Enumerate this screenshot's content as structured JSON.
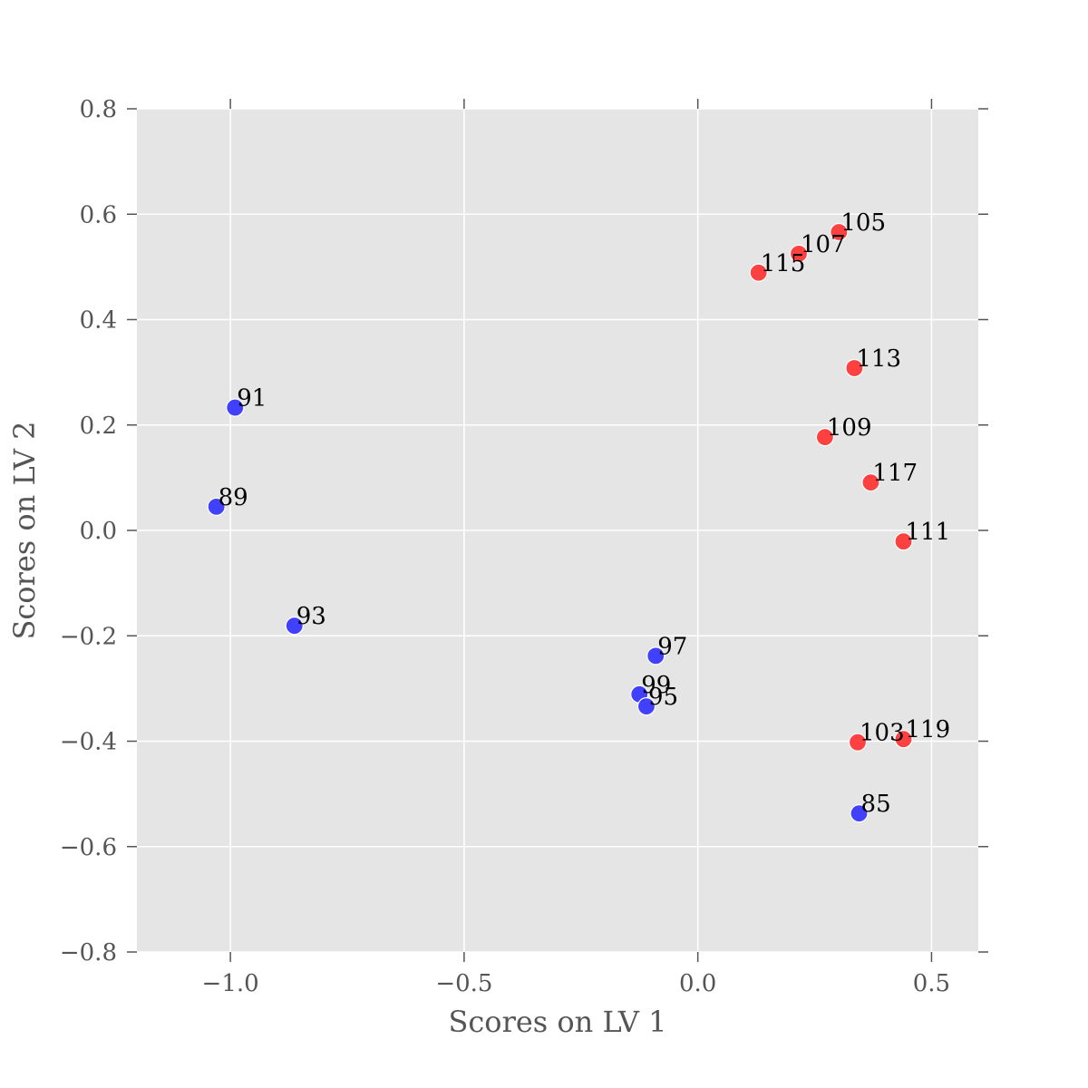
{
  "chart_data": {
    "type": "scatter",
    "title": "",
    "xlabel": "Scores on LV 1",
    "ylabel": "Scores on LV 2",
    "xlim": [
      -1.2,
      0.6
    ],
    "ylim": [
      -0.8,
      0.8
    ],
    "xticks": [
      -1.0,
      -0.5,
      0.0,
      0.5
    ],
    "xtick_labels": [
      "−1.0",
      "−0.5",
      "0.0",
      "0.5"
    ],
    "yticks": [
      0.8,
      0.6,
      0.4,
      0.2,
      0.0,
      -0.2,
      -0.4,
      -0.6,
      -0.8
    ],
    "ytick_labels": [
      "0.8",
      "0.6",
      "0.4",
      "0.2",
      "0.0",
      "−0.2",
      "−0.4",
      "−0.6",
      "−0.8"
    ],
    "grid": true,
    "background": "#e5e5e5",
    "grid_color": "#ffffff",
    "series": [
      {
        "color": "#3333ff",
        "points": [
          {
            "label": "91",
            "x": -0.99,
            "y": 0.233
          },
          {
            "label": "89",
            "x": -1.03,
            "y": 0.045
          },
          {
            "label": "93",
            "x": -0.863,
            "y": -0.181
          },
          {
            "label": "97",
            "x": -0.09,
            "y": -0.238
          },
          {
            "label": "99",
            "x": -0.125,
            "y": -0.311
          },
          {
            "label": "95",
            "x": -0.11,
            "y": -0.334
          },
          {
            "label": "85",
            "x": 0.345,
            "y": -0.537
          }
        ]
      },
      {
        "color": "#ff3333",
        "points": [
          {
            "label": "105",
            "x": 0.302,
            "y": 0.566
          },
          {
            "label": "107",
            "x": 0.216,
            "y": 0.525
          },
          {
            "label": "115",
            "x": 0.13,
            "y": 0.489
          },
          {
            "label": "113",
            "x": 0.335,
            "y": 0.308
          },
          {
            "label": "109",
            "x": 0.272,
            "y": 0.177
          },
          {
            "label": "117",
            "x": 0.37,
            "y": 0.091
          },
          {
            "label": "111",
            "x": 0.44,
            "y": -0.021
          },
          {
            "label": "103",
            "x": 0.342,
            "y": -0.402
          },
          {
            "label": "119",
            "x": 0.44,
            "y": -0.396
          }
        ]
      }
    ]
  }
}
